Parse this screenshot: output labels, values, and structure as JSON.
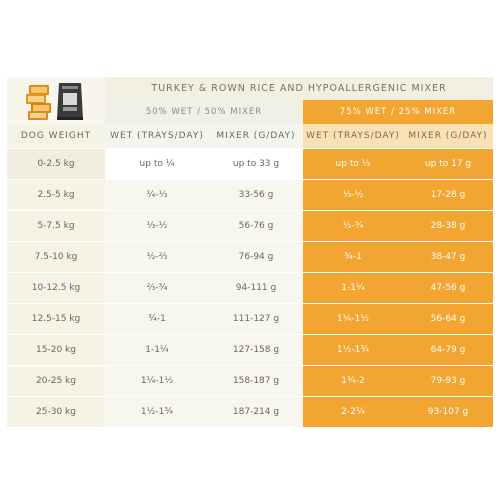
{
  "table": {
    "title": "TURKEY & ROWN RICE AND HYPOALLERGENIC MIXER",
    "group_50": "50% WET / 50% MIXER",
    "group_75": "75% WET / 25% MIXER",
    "columns": [
      "DOG WEIGHT",
      "WET (TRAYS/DAY)",
      "MIXER (G/DAY)",
      "WET (TRAYS/DAY)",
      "MIXER (G/DAY)"
    ],
    "rows": [
      [
        "0-2.5 kg",
        "up to ¼",
        "up to 33 g",
        "up to ⅓",
        "up to 17 g"
      ],
      [
        "2.5-5 kg",
        "¼-⅓",
        "33-56 g",
        "⅓-½",
        "17-28 g"
      ],
      [
        "5-7.5 kg",
        "⅓-½",
        "56-76 g",
        "½-¾",
        "28-38 g"
      ],
      [
        "7.5-10 kg",
        "½-⅔",
        "76-94 g",
        "¾-1",
        "38-47 g"
      ],
      [
        "10-12.5 kg",
        "⅔-¾",
        "94-111 g",
        "1-1¼",
        "47-56 g"
      ],
      [
        "12.5-15 kg",
        "¾-1",
        "111-127 g",
        "1¼-1½",
        "56-64 g"
      ],
      [
        "15-20 kg",
        "1-1¼",
        "127-158 g",
        "1½-1¾",
        "64-79 g"
      ],
      [
        "20-25 kg",
        "1¼-1½",
        "158-187 g",
        "1¾-2",
        "79-93 g"
      ],
      [
        "25-30 kg",
        "1½-1¾",
        "187-214 g",
        "2-2¼",
        "93-107 g"
      ]
    ]
  },
  "colors": {
    "accent_orange": "#f2a531",
    "cream": "#f5f2e6",
    "text": "#6e665c"
  },
  "images": [
    "dog-food-trays-product-image",
    "dry-mixer-bag-product-image"
  ]
}
